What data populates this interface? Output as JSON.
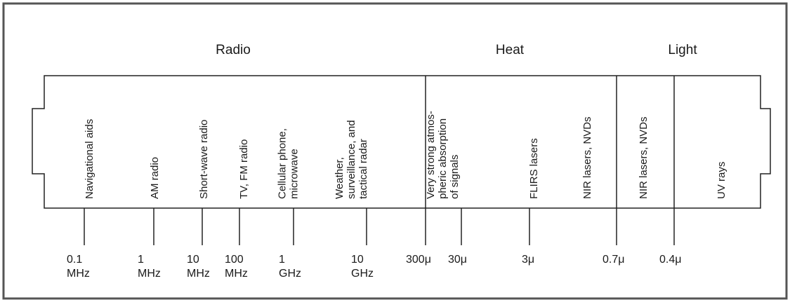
{
  "regions": [
    {
      "label": "Radio"
    },
    {
      "label": "Heat"
    },
    {
      "label": "Light"
    }
  ],
  "bands": [
    {
      "lines": [
        "Navigational aids"
      ]
    },
    {
      "lines": [
        "AM radio"
      ]
    },
    {
      "lines": [
        "Short-wave radio"
      ]
    },
    {
      "lines": [
        "TV, FM radio"
      ]
    },
    {
      "lines": [
        "Cellular phone,",
        "microwave"
      ]
    },
    {
      "lines": [
        "Weather,",
        "surveillance, and",
        "tactical radar"
      ]
    },
    {
      "lines": [
        "Very strong atmos-",
        "pheric absorption",
        "of signals"
      ]
    },
    {
      "lines": [
        "FLIRS lasers"
      ]
    },
    {
      "lines": [
        "NIR lasers, NVDs"
      ]
    },
    {
      "lines": [
        "NIR lasers, NVDs"
      ]
    },
    {
      "lines": [
        "UV rays"
      ]
    }
  ],
  "ticks": [
    {
      "lines": [
        "0.1",
        "MHz"
      ]
    },
    {
      "lines": [
        "1",
        "MHz"
      ]
    },
    {
      "lines": [
        "10",
        "MHz"
      ]
    },
    {
      "lines": [
        "100",
        "MHz"
      ]
    },
    {
      "lines": [
        "1",
        "GHz"
      ]
    },
    {
      "lines": [
        "10",
        "GHz"
      ]
    },
    {
      "lines": [
        "300μ"
      ]
    },
    {
      "lines": [
        "30μ"
      ]
    },
    {
      "lines": [
        "3μ"
      ]
    },
    {
      "lines": [
        "0.7μ"
      ]
    },
    {
      "lines": [
        "0.4μ"
      ]
    }
  ],
  "colors": {
    "ink": "#1a1a1a",
    "frame": "#3a3a3a",
    "background": "#ffffff"
  }
}
